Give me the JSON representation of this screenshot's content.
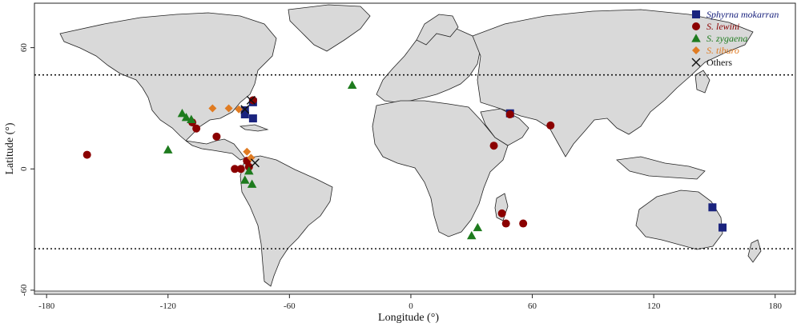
{
  "map": {
    "x_axis_title": "Longitude (°)",
    "y_axis_title": "Latitude (°)",
    "x_ticks": [
      -180,
      -120,
      -60,
      0,
      60,
      120,
      180
    ],
    "y_ticks": [
      -60,
      0,
      60
    ],
    "x_range": [
      -186,
      190
    ],
    "y_range": [
      -62,
      82
    ],
    "dotted_latitudes": [
      46.5,
      -39.5
    ],
    "land_color": "#d9d9d9",
    "legend": {
      "placement": "top-right",
      "entries": [
        {
          "key": "mokarran",
          "label": "Sphyrna mokarran",
          "marker": "square",
          "color": "#1a237e"
        },
        {
          "key": "lewini",
          "label": "S. lewini",
          "marker": "circle",
          "color": "#8b0000"
        },
        {
          "key": "zygaena",
          "label": "S. zygaena",
          "marker": "triangle",
          "color": "#1e7b1e"
        },
        {
          "key": "tiburo",
          "label": "S. tiburo",
          "marker": "diamond",
          "color": "#e07b22"
        },
        {
          "key": "others",
          "label": "Others",
          "marker": "x",
          "color": "#111111"
        }
      ]
    },
    "points": [
      {
        "species": "mokarran",
        "lon": -82,
        "lat": 29
      },
      {
        "species": "mokarran",
        "lon": -82,
        "lat": 27
      },
      {
        "species": "mokarran",
        "lon": -78,
        "lat": 25
      },
      {
        "species": "mokarran",
        "lon": -78,
        "lat": 33
      },
      {
        "species": "mokarran",
        "lon": 49,
        "lat": 27.5
      },
      {
        "species": "mokarran",
        "lon": 149,
        "lat": -19
      },
      {
        "species": "mokarran",
        "lon": 154,
        "lat": -29
      },
      {
        "species": "lewini",
        "lon": -160,
        "lat": 7
      },
      {
        "species": "lewini",
        "lon": -108,
        "lat": 23
      },
      {
        "species": "lewini",
        "lon": -106,
        "lat": 20
      },
      {
        "species": "lewini",
        "lon": -96,
        "lat": 16
      },
      {
        "species": "lewini",
        "lon": -87,
        "lat": 0
      },
      {
        "species": "lewini",
        "lon": -84,
        "lat": 0
      },
      {
        "species": "lewini",
        "lon": -81,
        "lat": 4
      },
      {
        "species": "lewini",
        "lon": -80,
        "lat": 1
      },
      {
        "species": "lewini",
        "lon": -78,
        "lat": 34
      },
      {
        "species": "lewini",
        "lon": 49,
        "lat": 27
      },
      {
        "species": "lewini",
        "lon": 69,
        "lat": 21.5
      },
      {
        "species": "lewini",
        "lon": 41,
        "lat": 11.5
      },
      {
        "species": "lewini",
        "lon": 45,
        "lat": -22
      },
      {
        "species": "lewini",
        "lon": 47,
        "lat": -27
      },
      {
        "species": "lewini",
        "lon": 55.5,
        "lat": -27
      },
      {
        "species": "zygaena",
        "lon": -120,
        "lat": 9.5
      },
      {
        "species": "zygaena",
        "lon": -113,
        "lat": 27.5
      },
      {
        "species": "zygaena",
        "lon": -111,
        "lat": 25.5
      },
      {
        "species": "zygaena",
        "lon": -108.5,
        "lat": 24.5
      },
      {
        "species": "zygaena",
        "lon": -82,
        "lat": -5.5
      },
      {
        "species": "zygaena",
        "lon": -80,
        "lat": -1
      },
      {
        "species": "zygaena",
        "lon": -78.5,
        "lat": -7.5
      },
      {
        "species": "zygaena",
        "lon": -29,
        "lat": 41.5
      },
      {
        "species": "zygaena",
        "lon": 30,
        "lat": -33
      },
      {
        "species": "zygaena",
        "lon": 33,
        "lat": -29
      },
      {
        "species": "tiburo",
        "lon": -98,
        "lat": 30
      },
      {
        "species": "tiburo",
        "lon": -90,
        "lat": 30
      },
      {
        "species": "tiburo",
        "lon": -85,
        "lat": 29.5
      },
      {
        "species": "tiburo",
        "lon": -81,
        "lat": 8.5
      },
      {
        "species": "tiburo",
        "lon": -79,
        "lat": 5.5
      },
      {
        "species": "others",
        "lon": -82,
        "lat": 29.5
      },
      {
        "species": "others",
        "lon": -79,
        "lat": 34
      },
      {
        "species": "others",
        "lon": -77,
        "lat": 3
      }
    ]
  }
}
